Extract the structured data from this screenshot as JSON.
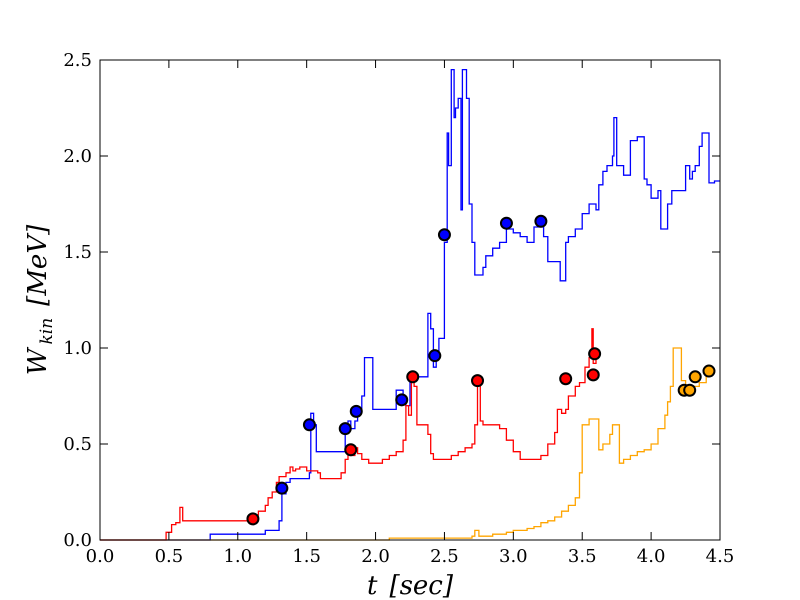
{
  "chart_data": {
    "type": "line",
    "title": "",
    "xlabel": "t [sec]",
    "xlabel_parts": {
      "main": "t",
      "unit": "[sec]"
    },
    "ylabel": "W_kin [MeV]",
    "ylabel_parts": {
      "main": "W",
      "sub": "kin",
      "unit": "[MeV]"
    },
    "xlim": [
      0.0,
      4.5
    ],
    "ylim": [
      0.0,
      2.5
    ],
    "xticks": [
      "0.0",
      "0.5",
      "1.0",
      "1.5",
      "2.0",
      "2.5",
      "3.0",
      "3.5",
      "4.0",
      "4.5"
    ],
    "yticks": [
      "0.0",
      "0.5",
      "1.0",
      "1.5",
      "2.0",
      "2.5"
    ],
    "grid": false,
    "series": [
      {
        "color": "#0000ff",
        "step_points": [
          [
            0.0,
            0.0
          ],
          [
            0.78,
            0.0
          ],
          [
            0.8,
            0.03
          ],
          [
            1.0,
            0.03
          ],
          [
            1.1,
            0.03
          ],
          [
            1.2,
            0.05
          ],
          [
            1.3,
            0.1
          ],
          [
            1.32,
            0.24
          ],
          [
            1.35,
            0.3
          ],
          [
            1.38,
            0.32
          ],
          [
            1.45,
            0.32
          ],
          [
            1.52,
            0.35
          ],
          [
            1.53,
            0.66
          ],
          [
            1.55,
            0.6
          ],
          [
            1.57,
            0.46
          ],
          [
            1.75,
            0.46
          ],
          [
            1.78,
            0.6
          ],
          [
            1.8,
            0.62
          ],
          [
            1.82,
            0.58
          ],
          [
            1.85,
            0.62
          ],
          [
            1.87,
            0.68
          ],
          [
            1.9,
            0.75
          ],
          [
            1.92,
            0.95
          ],
          [
            1.97,
            0.95
          ],
          [
            1.98,
            0.68
          ],
          [
            2.14,
            0.68
          ],
          [
            2.15,
            0.78
          ],
          [
            2.2,
            0.72
          ],
          [
            2.22,
            0.7
          ],
          [
            2.25,
            0.85
          ],
          [
            2.3,
            0.85
          ],
          [
            2.35,
            0.85
          ],
          [
            2.38,
            1.18
          ],
          [
            2.4,
            1.1
          ],
          [
            2.42,
            0.9
          ],
          [
            2.44,
            0.96
          ],
          [
            2.46,
            1.05
          ],
          [
            2.5,
            1.55
          ],
          [
            2.52,
            2.12
          ],
          [
            2.53,
            1.95
          ],
          [
            2.55,
            2.45
          ],
          [
            2.57,
            2.2
          ],
          [
            2.58,
            2.25
          ],
          [
            2.6,
            2.3
          ],
          [
            2.62,
            1.72
          ],
          [
            2.63,
            2.45
          ],
          [
            2.65,
            2.45
          ],
          [
            2.66,
            2.3
          ],
          [
            2.68,
            1.75
          ],
          [
            2.7,
            1.55
          ],
          [
            2.72,
            1.38
          ],
          [
            2.76,
            1.38
          ],
          [
            2.78,
            1.42
          ],
          [
            2.8,
            1.48
          ],
          [
            2.85,
            1.52
          ],
          [
            2.9,
            1.55
          ],
          [
            2.95,
            1.62
          ],
          [
            3.0,
            1.6
          ],
          [
            3.05,
            1.58
          ],
          [
            3.1,
            1.55
          ],
          [
            3.15,
            1.63
          ],
          [
            3.2,
            1.63
          ],
          [
            3.22,
            1.58
          ],
          [
            3.25,
            1.45
          ],
          [
            3.3,
            1.45
          ],
          [
            3.34,
            1.35
          ],
          [
            3.38,
            1.55
          ],
          [
            3.4,
            1.58
          ],
          [
            3.45,
            1.62
          ],
          [
            3.5,
            1.7
          ],
          [
            3.55,
            1.75
          ],
          [
            3.6,
            1.72
          ],
          [
            3.62,
            1.85
          ],
          [
            3.65,
            1.92
          ],
          [
            3.68,
            1.95
          ],
          [
            3.72,
            2.0
          ],
          [
            3.73,
            2.2
          ],
          [
            3.75,
            1.95
          ],
          [
            3.8,
            1.9
          ],
          [
            3.85,
            2.08
          ],
          [
            3.9,
            2.1
          ],
          [
            3.95,
            1.88
          ],
          [
            3.97,
            1.85
          ],
          [
            4.0,
            1.78
          ],
          [
            4.05,
            1.82
          ],
          [
            4.07,
            1.62
          ],
          [
            4.1,
            1.62
          ],
          [
            4.12,
            1.75
          ],
          [
            4.15,
            1.82
          ],
          [
            4.2,
            1.82
          ],
          [
            4.25,
            1.95
          ],
          [
            4.28,
            1.88
          ],
          [
            4.3,
            1.92
          ],
          [
            4.32,
            1.95
          ],
          [
            4.35,
            2.05
          ],
          [
            4.37,
            2.12
          ],
          [
            4.4,
            2.12
          ],
          [
            4.42,
            1.86
          ],
          [
            4.46,
            1.87
          ],
          [
            4.5,
            1.87
          ]
        ],
        "markers": [
          [
            1.32,
            0.27
          ],
          [
            1.52,
            0.6
          ],
          [
            1.78,
            0.58
          ],
          [
            1.86,
            0.67
          ],
          [
            2.19,
            0.73
          ],
          [
            2.43,
            0.96
          ],
          [
            2.5,
            1.59
          ],
          [
            2.95,
            1.65
          ],
          [
            3.2,
            1.66
          ]
        ]
      },
      {
        "color": "#ff0000",
        "step_points": [
          [
            0.0,
            0.0
          ],
          [
            0.45,
            0.0
          ],
          [
            0.48,
            0.04
          ],
          [
            0.52,
            0.08
          ],
          [
            0.55,
            0.09
          ],
          [
            0.58,
            0.17
          ],
          [
            0.6,
            0.1
          ],
          [
            1.05,
            0.1
          ],
          [
            1.08,
            0.09
          ],
          [
            1.1,
            0.11
          ],
          [
            1.12,
            0.13
          ],
          [
            1.15,
            0.15
          ],
          [
            1.2,
            0.18
          ],
          [
            1.22,
            0.22
          ],
          [
            1.25,
            0.25
          ],
          [
            1.28,
            0.3
          ],
          [
            1.3,
            0.33
          ],
          [
            1.35,
            0.35
          ],
          [
            1.38,
            0.38
          ],
          [
            1.4,
            0.36
          ],
          [
            1.42,
            0.37
          ],
          [
            1.45,
            0.38
          ],
          [
            1.5,
            0.36
          ],
          [
            1.55,
            0.36
          ],
          [
            1.58,
            0.35
          ],
          [
            1.6,
            0.32
          ],
          [
            1.65,
            0.32
          ],
          [
            1.7,
            0.32
          ],
          [
            1.75,
            0.35
          ],
          [
            1.78,
            0.42
          ],
          [
            1.8,
            0.46
          ],
          [
            1.82,
            0.44
          ],
          [
            1.85,
            0.48
          ],
          [
            1.87,
            0.45
          ],
          [
            1.9,
            0.42
          ],
          [
            1.95,
            0.4
          ],
          [
            2.0,
            0.4
          ],
          [
            2.05,
            0.42
          ],
          [
            2.1,
            0.44
          ],
          [
            2.15,
            0.46
          ],
          [
            2.2,
            0.52
          ],
          [
            2.22,
            0.7
          ],
          [
            2.24,
            0.65
          ],
          [
            2.26,
            0.85
          ],
          [
            2.28,
            0.8
          ],
          [
            2.3,
            0.6
          ],
          [
            2.35,
            0.6
          ],
          [
            2.38,
            0.55
          ],
          [
            2.4,
            0.45
          ],
          [
            2.42,
            0.42
          ],
          [
            2.5,
            0.42
          ],
          [
            2.55,
            0.44
          ],
          [
            2.6,
            0.46
          ],
          [
            2.65,
            0.48
          ],
          [
            2.7,
            0.5
          ],
          [
            2.72,
            0.6
          ],
          [
            2.74,
            0.85
          ],
          [
            2.76,
            0.62
          ],
          [
            2.78,
            0.6
          ],
          [
            2.85,
            0.6
          ],
          [
            2.9,
            0.58
          ],
          [
            2.95,
            0.52
          ],
          [
            3.0,
            0.46
          ],
          [
            3.05,
            0.42
          ],
          [
            3.1,
            0.42
          ],
          [
            3.15,
            0.42
          ],
          [
            3.2,
            0.44
          ],
          [
            3.25,
            0.5
          ],
          [
            3.3,
            0.56
          ],
          [
            3.32,
            0.68
          ],
          [
            3.35,
            0.66
          ],
          [
            3.38,
            0.68
          ],
          [
            3.4,
            0.75
          ],
          [
            3.45,
            0.8
          ],
          [
            3.48,
            0.82
          ],
          [
            3.5,
            0.82
          ],
          [
            3.52,
            0.9
          ],
          [
            3.55,
            0.95
          ],
          [
            3.57,
            1.1
          ],
          [
            3.58,
            0.92
          ],
          [
            3.6,
            0.95
          ]
        ],
        "markers": [
          [
            1.11,
            0.11
          ],
          [
            1.82,
            0.47
          ],
          [
            2.27,
            0.85
          ],
          [
            2.74,
            0.83
          ],
          [
            3.38,
            0.84
          ],
          [
            3.58,
            0.86
          ],
          [
            3.59,
            0.97
          ]
        ]
      },
      {
        "color": "#ffa500",
        "step_points": [
          [
            0.0,
            0.0
          ],
          [
            2.05,
            0.0
          ],
          [
            2.1,
            0.01
          ],
          [
            2.5,
            0.01
          ],
          [
            2.7,
            0.02
          ],
          [
            2.72,
            0.05
          ],
          [
            2.75,
            0.02
          ],
          [
            2.85,
            0.03
          ],
          [
            2.95,
            0.04
          ],
          [
            3.0,
            0.05
          ],
          [
            3.1,
            0.06
          ],
          [
            3.15,
            0.07
          ],
          [
            3.2,
            0.09
          ],
          [
            3.25,
            0.1
          ],
          [
            3.3,
            0.12
          ],
          [
            3.35,
            0.15
          ],
          [
            3.4,
            0.18
          ],
          [
            3.45,
            0.22
          ],
          [
            3.48,
            0.35
          ],
          [
            3.5,
            0.6
          ],
          [
            3.55,
            0.63
          ],
          [
            3.6,
            0.63
          ],
          [
            3.62,
            0.47
          ],
          [
            3.65,
            0.5
          ],
          [
            3.7,
            0.55
          ],
          [
            3.72,
            0.6
          ],
          [
            3.75,
            0.6
          ],
          [
            3.77,
            0.4
          ],
          [
            3.8,
            0.42
          ],
          [
            3.85,
            0.44
          ],
          [
            3.9,
            0.46
          ],
          [
            3.95,
            0.47
          ],
          [
            4.0,
            0.5
          ],
          [
            4.05,
            0.58
          ],
          [
            4.1,
            0.65
          ],
          [
            4.12,
            0.72
          ],
          [
            4.14,
            0.8
          ],
          [
            4.16,
            1.0
          ],
          [
            4.2,
            1.0
          ],
          [
            4.22,
            0.83
          ],
          [
            4.25,
            0.8
          ],
          [
            4.28,
            0.76
          ],
          [
            4.3,
            0.8
          ],
          [
            4.35,
            0.82
          ],
          [
            4.38,
            0.82
          ],
          [
            4.4,
            0.85
          ],
          [
            4.42,
            0.88
          ],
          [
            4.44,
            0.88
          ]
        ],
        "markers": [
          [
            4.24,
            0.78
          ],
          [
            4.28,
            0.78
          ],
          [
            4.32,
            0.85
          ],
          [
            4.42,
            0.88
          ]
        ]
      }
    ]
  }
}
